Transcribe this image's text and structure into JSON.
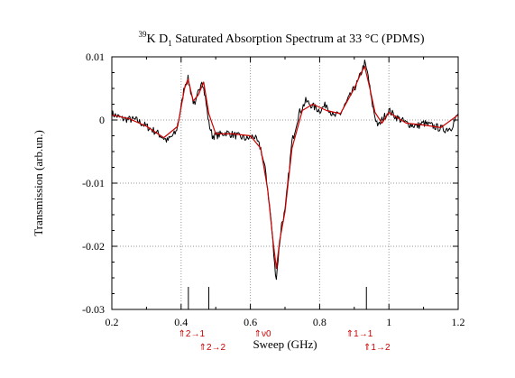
{
  "chart_data": {
    "type": "line",
    "title_sup": "39",
    "title_pre": "K D",
    "title_sub": "1",
    "title_rest": " Saturated Absorption Spectrum at 33 °C (PDMS)",
    "xlabel": "Sweep (GHz)",
    "ylabel": "Transmission (arb.un.)",
    "xlim": [
      0.2,
      1.2
    ],
    "ylim": [
      -0.03,
      0.01
    ],
    "xticks": [
      0.2,
      0.4,
      0.6,
      0.8,
      1.0,
      1.2
    ],
    "xtick_labels": [
      "0.2",
      "0.4",
      "0.6",
      "0.8",
      "1",
      "1.2"
    ],
    "yticks": [
      0.01,
      0,
      -0.01,
      -0.02,
      -0.03
    ],
    "ytick_labels": [
      "0.01",
      "0",
      "-0.01",
      "-0.02",
      "-0.03"
    ],
    "grid": true,
    "series": [
      {
        "color": "#000000",
        "x": [
          0.2,
          0.23,
          0.27,
          0.3,
          0.33,
          0.36,
          0.385,
          0.4,
          0.41,
          0.42,
          0.43,
          0.44,
          0.45,
          0.46,
          0.47,
          0.48,
          0.49,
          0.5,
          0.53,
          0.56,
          0.59,
          0.61,
          0.63,
          0.645,
          0.66,
          0.67,
          0.675,
          0.68,
          0.69,
          0.7,
          0.71,
          0.72,
          0.74,
          0.76,
          0.78,
          0.8,
          0.82,
          0.84,
          0.86,
          0.88,
          0.9,
          0.91,
          0.92,
          0.93,
          0.94,
          0.95,
          0.96,
          0.97,
          0.98,
          1.0,
          1.02,
          1.05,
          1.08,
          1.1,
          1.13,
          1.16,
          1.18,
          1.2
        ],
        "y": [
          0.001,
          0.0002,
          0.0,
          -0.001,
          -0.002,
          -0.0033,
          -0.002,
          0.002,
          0.0055,
          0.0065,
          0.004,
          0.002,
          0.0045,
          0.0065,
          0.0035,
          -0.0005,
          -0.0025,
          -0.0025,
          -0.002,
          -0.0025,
          -0.003,
          -0.0025,
          -0.0045,
          -0.0085,
          -0.016,
          -0.023,
          -0.025,
          -0.022,
          -0.0165,
          -0.0145,
          -0.009,
          -0.0035,
          0.001,
          0.003,
          0.0022,
          0.0015,
          0.0025,
          0.0005,
          0.001,
          0.003,
          0.005,
          0.006,
          0.0075,
          0.009,
          0.007,
          0.003,
          0.0005,
          -0.001,
          0.0,
          0.0015,
          0.0005,
          -0.0005,
          -0.001,
          -0.0005,
          -0.001,
          -0.0015,
          -0.0012,
          0.001
        ]
      },
      {
        "color": "#cc0000",
        "x": [
          0.2,
          0.25,
          0.3,
          0.35,
          0.39,
          0.41,
          0.42,
          0.435,
          0.45,
          0.465,
          0.48,
          0.5,
          0.55,
          0.6,
          0.63,
          0.65,
          0.665,
          0.675,
          0.685,
          0.7,
          0.72,
          0.75,
          0.78,
          0.82,
          0.86,
          0.9,
          0.92,
          0.93,
          0.945,
          0.96,
          0.98,
          1.0,
          1.05,
          1.1,
          1.15,
          1.2
        ],
        "y": [
          0.0008,
          0.0002,
          -0.001,
          -0.0028,
          -0.001,
          0.005,
          0.0065,
          0.003,
          0.004,
          0.006,
          0.001,
          -0.0022,
          -0.0022,
          -0.0025,
          -0.0045,
          -0.011,
          -0.019,
          -0.0235,
          -0.019,
          -0.0145,
          -0.0045,
          0.0015,
          0.0025,
          0.0015,
          0.001,
          0.005,
          0.0075,
          0.0085,
          0.005,
          0.0012,
          -0.0005,
          0.0012,
          -0.0005,
          -0.0008,
          -0.0012,
          0.0008
        ]
      }
    ],
    "markers_x": [
      0.421,
      0.48,
      0.935
    ],
    "annotations": [
      {
        "text": "⇑2→1",
        "x": 0.43,
        "row": 1
      },
      {
        "text": "⇑2→2",
        "x": 0.49,
        "row": 2
      },
      {
        "text": "⇑ν0",
        "x": 0.635,
        "row": 1
      },
      {
        "text": "⇑1→1",
        "x": 0.915,
        "row": 1
      },
      {
        "text": "⇑1→2",
        "x": 0.965,
        "row": 2
      }
    ]
  }
}
